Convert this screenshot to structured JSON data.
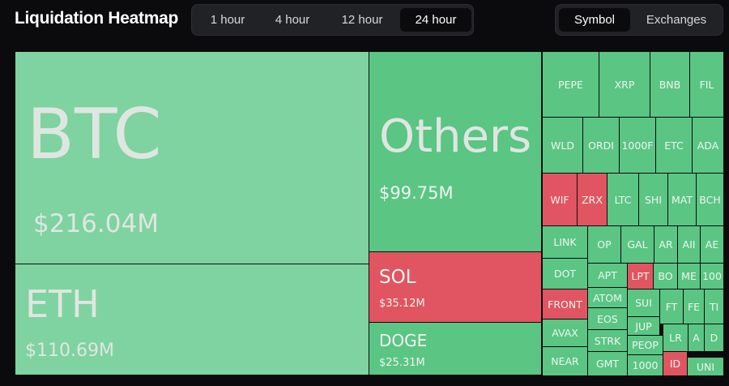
{
  "header": {
    "title": "Liquidation Heatmap",
    "periods": [
      "1 hour",
      "4 hour",
      "12 hour",
      "24 hour"
    ],
    "views": [
      "Symbol",
      "Exchanges"
    ]
  },
  "tiles": [
    {
      "label": "BTC",
      "value": "$216.04M"
    },
    {
      "label": "ETH",
      "value": "$110.69M"
    },
    {
      "label": "Others",
      "value": "$99.75M"
    },
    {
      "label": "SOL",
      "value": "$35.12M"
    },
    {
      "label": "DOGE",
      "value": "$25.31M"
    }
  ],
  "small_tiles": [
    "PEPE",
    "XRP",
    "BNB",
    "FIL",
    "WLD",
    "ORDI",
    "1000F",
    "ETC",
    "ADA",
    "WIF",
    "ZRX",
    "LTC",
    "SHI",
    "MAT",
    "BCH",
    "LINK",
    "DOT",
    "FRONT",
    "AVAX",
    "NEAR",
    "OP",
    "APT",
    "ATOM",
    "EOS",
    "STRK",
    "GMT",
    "GAL",
    "AR",
    "AII",
    "AE",
    "LPT",
    "BO",
    "ME",
    "100",
    "SUI",
    "FT",
    "FE",
    "TI",
    "JUP",
    "PEOP",
    "1000",
    "LR",
    "A",
    "D",
    "ID",
    "UNI"
  ]
}
